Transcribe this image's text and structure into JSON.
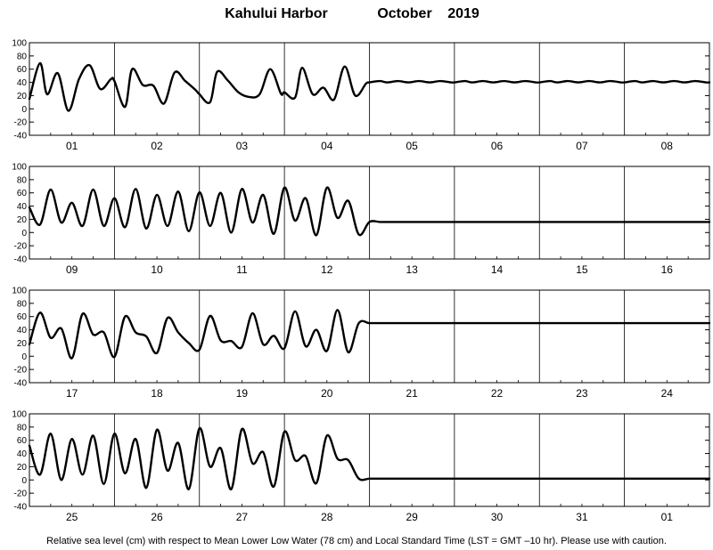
{
  "header": {
    "station": "Kahului Harbor",
    "month": "October",
    "year": "2019"
  },
  "footer": {
    "note": "Relative sea level (cm) with respect to Mean Lower Low Water (78 cm) and Local Standard Time (LST = GMT –10 hr). Please use with caution."
  },
  "chart_data": [
    {
      "type": "line",
      "title": "",
      "xlabel": "",
      "ylabel": "",
      "ylim": [
        -40,
        100
      ],
      "yticks": [
        100,
        80,
        60,
        40,
        20,
        0,
        -20,
        -40
      ],
      "grid": false,
      "day_labels": [
        "01",
        "02",
        "03",
        "04",
        "05",
        "06",
        "07",
        "08"
      ],
      "series": [
        {
          "x_hours": [
            0,
            3,
            5,
            8,
            11,
            14,
            17,
            20,
            23,
            24,
            27,
            29,
            32,
            35,
            38,
            41,
            44,
            47,
            48,
            51,
            53,
            56,
            59,
            62,
            65,
            68,
            71,
            72,
            75,
            77,
            80,
            83,
            86,
            89,
            92,
            95,
            96,
            99,
            101,
            104,
            107,
            110,
            113,
            116,
            119,
            120,
            123,
            125,
            128,
            131,
            134,
            137,
            140,
            143,
            144,
            147,
            149,
            152,
            155,
            158,
            161,
            164,
            167,
            168,
            171,
            173,
            176,
            179,
            182,
            185,
            188,
            191,
            192
          ],
          "y": [
            15,
            69,
            22,
            54,
            -3,
            45,
            66,
            30,
            45,
            42,
            3,
            60,
            36,
            35,
            8,
            55,
            42,
            28,
            22,
            10,
            56,
            43,
            25,
            18,
            22,
            60,
            23,
            25,
            17,
            62,
            22,
            32,
            14,
            64,
            20,
            38,
            40,
            42,
            40,
            42,
            40,
            42,
            40,
            42,
            40,
            40,
            42,
            40,
            42,
            40,
            42,
            40,
            42,
            40,
            40,
            42,
            40,
            42,
            40,
            42,
            40,
            42,
            40,
            40,
            42,
            40,
            42,
            40,
            42,
            40,
            42,
            40,
            40
          ]
        }
      ]
    },
    {
      "type": "line",
      "title": "",
      "xlabel": "",
      "ylabel": "",
      "ylim": [
        -40,
        100
      ],
      "yticks": [
        100,
        80,
        60,
        40,
        20,
        0,
        -20,
        -40
      ],
      "grid": false,
      "day_labels": [
        "09",
        "10",
        "11",
        "12",
        "13",
        "14",
        "15",
        "16"
      ],
      "series": [
        {
          "x_hours": [
            0,
            3,
            6,
            9,
            12,
            15,
            18,
            21,
            24,
            27,
            30,
            33,
            36,
            39,
            42,
            45,
            48,
            51,
            54,
            57,
            60,
            63,
            66,
            69,
            72,
            75,
            78,
            81,
            84,
            87,
            90,
            93,
            96,
            99,
            102,
            105,
            108,
            111,
            114,
            117,
            120,
            123,
            126,
            129,
            132,
            135,
            138,
            141,
            144,
            147,
            150,
            153,
            156,
            159,
            162,
            165,
            168,
            171,
            174,
            177,
            180,
            183,
            186,
            189,
            192
          ],
          "y": [
            38,
            12,
            65,
            15,
            45,
            10,
            65,
            10,
            52,
            8,
            66,
            6,
            57,
            10,
            62,
            2,
            61,
            10,
            60,
            0,
            66,
            15,
            57,
            -2,
            68,
            18,
            52,
            -4,
            68,
            22,
            48,
            -3,
            16,
            16,
            16,
            16,
            16,
            16,
            16,
            16,
            16,
            16,
            16,
            16,
            16,
            16,
            16,
            16,
            16,
            16,
            16,
            16,
            16,
            16,
            16,
            16,
            16,
            16,
            16,
            16,
            16,
            16,
            16,
            16,
            16
          ]
        }
      ]
    },
    {
      "type": "line",
      "title": "",
      "xlabel": "",
      "ylabel": "",
      "ylim": [
        -40,
        100
      ],
      "yticks": [
        100,
        80,
        60,
        40,
        20,
        0,
        -20,
        -40
      ],
      "grid": false,
      "day_labels": [
        "17",
        "18",
        "19",
        "20",
        "21",
        "22",
        "23",
        "24"
      ],
      "series": [
        {
          "x_hours": [
            0,
            3,
            6,
            9,
            12,
            15,
            18,
            21,
            24,
            27,
            30,
            33,
            36,
            39,
            42,
            45,
            48,
            51,
            54,
            57,
            60,
            63,
            66,
            69,
            72,
            75,
            78,
            81,
            84,
            87,
            90,
            93,
            96,
            99,
            102,
            105,
            108,
            111,
            114,
            117,
            120,
            123,
            126,
            129,
            132,
            135,
            138,
            141,
            144,
            147,
            150,
            153,
            156,
            159,
            162,
            165,
            168,
            171,
            174,
            177,
            180,
            183,
            186,
            189,
            192
          ],
          "y": [
            18,
            66,
            28,
            42,
            -3,
            64,
            33,
            36,
            -1,
            60,
            36,
            30,
            5,
            58,
            36,
            20,
            10,
            61,
            24,
            23,
            14,
            65,
            18,
            31,
            12,
            68,
            15,
            40,
            8,
            70,
            6,
            50,
            50,
            50,
            50,
            50,
            50,
            50,
            50,
            50,
            50,
            50,
            50,
            50,
            50,
            50,
            50,
            50,
            50,
            50,
            50,
            50,
            50,
            50,
            50,
            50,
            50,
            50,
            50,
            50,
            50,
            50,
            50,
            50,
            50
          ]
        }
      ]
    },
    {
      "type": "line",
      "title": "",
      "xlabel": "",
      "ylabel": "",
      "ylim": [
        -40,
        100
      ],
      "yticks": [
        100,
        80,
        60,
        40,
        20,
        0,
        -20,
        -40
      ],
      "grid": false,
      "day_labels": [
        "25",
        "26",
        "27",
        "28",
        "29",
        "30",
        "31",
        "01"
      ],
      "series": [
        {
          "x_hours": [
            0,
            3,
            6,
            9,
            12,
            15,
            18,
            21,
            24,
            27,
            30,
            33,
            36,
            39,
            42,
            45,
            48,
            51,
            54,
            57,
            60,
            63,
            66,
            69,
            72,
            75,
            78,
            81,
            84,
            87,
            90,
            93,
            96,
            99,
            102,
            105,
            108,
            111,
            114,
            117,
            120,
            123,
            126,
            129,
            132,
            135,
            138,
            141,
            144,
            147,
            150,
            153,
            156,
            159,
            162,
            165,
            168,
            171,
            174,
            177,
            180,
            183,
            186,
            189,
            192
          ],
          "y": [
            52,
            8,
            70,
            0,
            62,
            8,
            67,
            -6,
            70,
            10,
            62,
            -12,
            76,
            14,
            56,
            -14,
            78,
            20,
            48,
            -14,
            77,
            25,
            42,
            -10,
            73,
            30,
            36,
            -5,
            67,
            32,
            30,
            2,
            2,
            2,
            2,
            2,
            2,
            2,
            2,
            2,
            2,
            2,
            2,
            2,
            2,
            2,
            2,
            2,
            2,
            2,
            2,
            2,
            2,
            2,
            2,
            2,
            2,
            2,
            2,
            2,
            2,
            2,
            2,
            2,
            2
          ]
        }
      ]
    }
  ]
}
